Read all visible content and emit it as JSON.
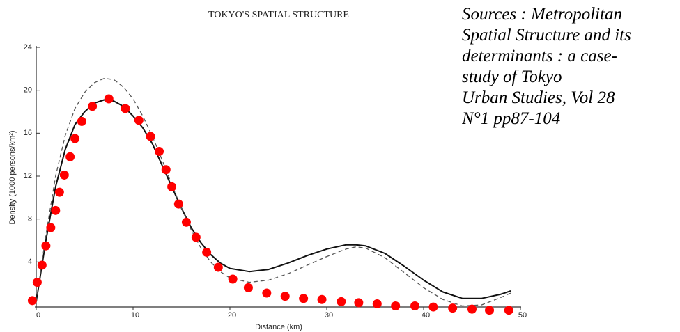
{
  "chart_data": {
    "type": "line",
    "title": "TOKYO'S SPATIAL STRUCTURE",
    "xlabel": "Distance (km)",
    "ylabel": "Density (1000 persons/km²)",
    "annotation": [
      "Sources : Metropolitan",
      "Spatial Structure and its",
      "determinants : a case-",
      "study of Tokyo",
      "Urban Studies, Vol 28",
      "N°1 pp87-104"
    ],
    "xlim": [
      0,
      50
    ],
    "xticks": [
      0,
      10,
      20,
      30,
      40,
      50
    ],
    "ylim": [
      -1,
      24
    ],
    "yticks": [
      4,
      8,
      12,
      16,
      20,
      24
    ],
    "series": [
      {
        "style": "solid",
        "color": "#111111",
        "x": [
          0,
          1,
          2,
          3,
          4,
          5,
          6,
          7,
          8,
          9,
          10,
          11,
          12,
          13,
          14,
          15,
          16,
          17,
          18,
          19,
          20,
          22,
          24,
          26,
          28,
          30,
          32,
          33,
          34,
          36,
          38,
          40,
          42,
          44,
          46,
          48,
          49
        ],
        "values": [
          0.3,
          6,
          11,
          14.5,
          16.8,
          18,
          18.8,
          19.1,
          19,
          18.5,
          17.6,
          16.5,
          15,
          13,
          11,
          9,
          7.2,
          5.8,
          4.7,
          3.9,
          3.4,
          3.1,
          3.3,
          3.9,
          4.6,
          5.2,
          5.6,
          5.6,
          5.5,
          4.8,
          3.6,
          2.3,
          1.2,
          0.6,
          0.6,
          1.0,
          1.3
        ]
      },
      {
        "style": "dashed",
        "color": "#555555",
        "x": [
          0,
          1,
          2,
          3,
          4,
          5,
          6,
          7,
          8,
          9,
          10,
          11,
          12,
          13,
          14,
          15,
          16,
          17,
          18,
          19,
          20,
          22,
          24,
          26,
          28,
          30,
          32,
          33,
          34,
          36,
          38,
          40,
          42,
          44,
          46,
          48,
          49
        ],
        "values": [
          0.3,
          6.5,
          12,
          15.8,
          18.3,
          19.8,
          20.7,
          21.1,
          21,
          20.3,
          19.2,
          17.6,
          15.7,
          13.5,
          11.2,
          9,
          7,
          5.3,
          4,
          3.1,
          2.5,
          2.1,
          2.3,
          2.9,
          3.7,
          4.5,
          5.2,
          5.4,
          5.3,
          4.4,
          3,
          1.6,
          0.5,
          -0.1,
          0.0,
          0.7,
          1.1
        ]
      },
      {
        "style": "dots",
        "color": "#ff0000",
        "x": [
          -0.4,
          0.1,
          0.6,
          1.0,
          1.5,
          2.0,
          2.4,
          2.9,
          3.5,
          4.0,
          4.7,
          5.8,
          7.5,
          9.2,
          10.6,
          11.8,
          12.7,
          13.4,
          14.0,
          14.7,
          15.5,
          16.5,
          17.6,
          18.8,
          20.3,
          21.9,
          23.8,
          25.7,
          27.6,
          29.5,
          31.5,
          33.3,
          35.2,
          37.1,
          39.1,
          41.0,
          43.0,
          45.0,
          46.8,
          48.8
        ],
        "values": [
          0.4,
          2.1,
          3.7,
          5.5,
          7.2,
          8.8,
          10.5,
          12.1,
          13.8,
          15.5,
          17.1,
          18.5,
          19.2,
          18.3,
          17.2,
          15.7,
          14.3,
          12.6,
          11.0,
          9.4,
          7.7,
          6.3,
          4.9,
          3.5,
          2.4,
          1.6,
          1.1,
          0.8,
          0.6,
          0.5,
          0.3,
          0.2,
          0.1,
          -0.1,
          -0.1,
          -0.2,
          -0.3,
          -0.4,
          -0.5,
          -0.5
        ]
      }
    ]
  }
}
